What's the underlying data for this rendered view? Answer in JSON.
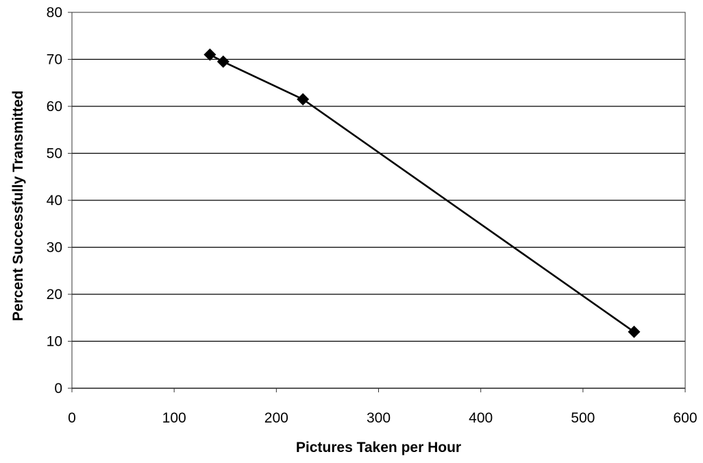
{
  "chart_data": {
    "type": "scatter",
    "title": "",
    "xlabel": "Pictures Taken per Hour",
    "ylabel": "Percent Successfully Transmitted",
    "xlim": [
      0,
      600
    ],
    "ylim": [
      0,
      80
    ],
    "xticks": [
      "0",
      "100",
      "200",
      "300",
      "400",
      "500",
      "600"
    ],
    "yticks": [
      "0",
      "10",
      "20",
      "30",
      "40",
      "50",
      "60",
      "70",
      "80"
    ],
    "grid": "horizontal",
    "legend": "none",
    "series": [
      {
        "color": "#000000",
        "marker": "diamond",
        "points": [
          {
            "x": 135,
            "y": 71
          },
          {
            "x": 148,
            "y": 69.5
          },
          {
            "x": 226,
            "y": 61.5
          },
          {
            "x": 550,
            "y": 12
          }
        ]
      }
    ]
  }
}
